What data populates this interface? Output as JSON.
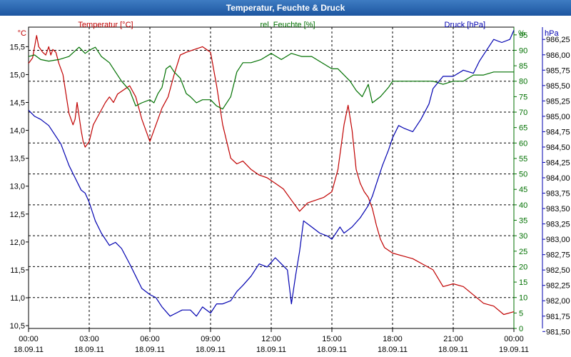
{
  "window": {
    "title": "Temperatur, Feuchte & Druck"
  },
  "colors": {
    "temperature": "#c00000",
    "humidity": "#007000",
    "pressure": "#0000b0",
    "title_bar": "#2a65b0"
  },
  "chart_data": {
    "type": "line",
    "title": "Temperatur, Feuchte & Druck",
    "grid": true,
    "x_ticks": [
      {
        "time": "00:00",
        "date": "18.09.11"
      },
      {
        "time": "03:00",
        "date": "18.09.11"
      },
      {
        "time": "06:00",
        "date": "18.09.11"
      },
      {
        "time": "09:00",
        "date": "18.09.11"
      },
      {
        "time": "12:00",
        "date": "18.09.11"
      },
      {
        "time": "15:00",
        "date": "18.09.11"
      },
      {
        "time": "18:00",
        "date": "18.09.11"
      },
      {
        "time": "21:00",
        "date": "18.09.11"
      },
      {
        "time": "00:00",
        "date": "19.09.11"
      }
    ],
    "x_range_hours": [
      0,
      24
    ],
    "axes": {
      "temperature": {
        "unit": "°C",
        "side": "left",
        "ylim": [
          10.45,
          15.85
        ],
        "ticks": [
          "10,5",
          "11,0",
          "11,5",
          "12,0",
          "12,5",
          "13,0",
          "13,5",
          "14,0",
          "14,5",
          "15,0",
          "15,5"
        ],
        "tick_values": [
          10.5,
          11.0,
          11.5,
          12.0,
          12.5,
          13.0,
          13.5,
          14.0,
          14.5,
          15.0,
          15.5
        ]
      },
      "humidity": {
        "unit": "%",
        "side": "right",
        "ylim": [
          0,
          97.5
        ],
        "ticks": [
          "0",
          "5",
          "10",
          "15",
          "20",
          "25",
          "30",
          "35",
          "40",
          "45",
          "50",
          "55",
          "60",
          "65",
          "70",
          "75",
          "80",
          "85",
          "90",
          "95"
        ],
        "tick_values": [
          0,
          5,
          10,
          15,
          20,
          25,
          30,
          35,
          40,
          45,
          50,
          55,
          60,
          65,
          70,
          75,
          80,
          85,
          90,
          95
        ]
      },
      "pressure": {
        "unit": "hPa",
        "side": "right",
        "ylim": [
          981.55,
          986.45
        ],
        "ticks": [
          "981,50",
          "981,75",
          "982,00",
          "982,25",
          "982,50",
          "982,75",
          "983,00",
          "983,25",
          "983,50",
          "983,75",
          "984,00",
          "984,25",
          "984,50",
          "984,75",
          "985,00",
          "985,25",
          "985,50",
          "985,75",
          "986,00",
          "986,25"
        ],
        "tick_values": [
          981.5,
          981.75,
          982.0,
          982.25,
          982.5,
          982.75,
          983.0,
          983.25,
          983.5,
          983.75,
          984.0,
          984.25,
          984.5,
          984.75,
          985.0,
          985.25,
          985.5,
          985.75,
          986.0,
          986.25
        ]
      }
    },
    "series": [
      {
        "name": "Temperatur [°C]",
        "axis": "temperature",
        "color": "#c00000",
        "x": [
          0,
          0.2,
          0.4,
          0.5,
          0.7,
          0.85,
          1.0,
          1.1,
          1.2,
          1.35,
          1.5,
          1.7,
          2.0,
          2.2,
          2.3,
          2.4,
          2.6,
          2.7,
          2.8,
          3.0,
          3.2,
          3.5,
          3.8,
          4.0,
          4.2,
          4.4,
          4.6,
          5.0,
          5.3,
          5.6,
          6.0,
          6.3,
          6.6,
          6.9,
          7.2,
          7.5,
          7.8,
          8.2,
          8.6,
          9.0,
          9.3,
          9.6,
          10.0,
          10.3,
          10.6,
          11.0,
          11.4,
          11.8,
          12.2,
          12.6,
          13.0,
          13.4,
          13.8,
          14.2,
          14.6,
          15.0,
          15.3,
          15.6,
          15.8,
          16.0,
          16.2,
          16.4,
          16.6,
          16.8,
          17.0,
          17.2,
          17.4,
          17.6,
          18.0,
          18.5,
          19.0,
          19.5,
          20.0,
          20.5,
          21.0,
          21.5,
          22.0,
          22.5,
          23.0,
          23.5,
          24.0
        ],
        "values": [
          15.2,
          15.3,
          15.7,
          15.5,
          15.4,
          15.35,
          15.5,
          15.35,
          15.45,
          15.4,
          15.2,
          15.0,
          14.3,
          14.1,
          14.2,
          14.5,
          14.0,
          13.8,
          13.7,
          13.8,
          14.1,
          14.3,
          14.5,
          14.6,
          14.5,
          14.65,
          14.7,
          14.8,
          14.6,
          14.2,
          13.8,
          14.1,
          14.4,
          14.6,
          15.0,
          15.35,
          15.4,
          15.45,
          15.5,
          15.4,
          14.8,
          14.1,
          13.5,
          13.4,
          13.45,
          13.3,
          13.2,
          13.15,
          13.05,
          12.95,
          12.75,
          12.55,
          12.7,
          12.75,
          12.8,
          12.9,
          13.3,
          14.1,
          14.45,
          14.0,
          13.3,
          13.05,
          12.9,
          12.8,
          12.6,
          12.3,
          12.05,
          11.9,
          11.8,
          11.75,
          11.7,
          11.6,
          11.5,
          11.2,
          11.25,
          11.2,
          11.05,
          10.9,
          10.85,
          10.7,
          10.75
        ]
      },
      {
        "name": "rel. Feuchte [%]",
        "axis": "humidity",
        "color": "#007000",
        "x": [
          0,
          0.3,
          0.6,
          1.0,
          1.5,
          2.0,
          2.5,
          2.8,
          3.0,
          3.3,
          3.6,
          4.0,
          4.3,
          4.6,
          5.0,
          5.3,
          5.6,
          6.0,
          6.2,
          6.4,
          6.6,
          6.8,
          7.0,
          7.2,
          7.5,
          7.8,
          8.0,
          8.3,
          8.6,
          9.0,
          9.3,
          9.6,
          10.0,
          10.3,
          10.6,
          11.0,
          11.5,
          12.0,
          12.5,
          13.0,
          13.5,
          14.0,
          14.5,
          15.0,
          15.3,
          15.6,
          15.9,
          16.2,
          16.5,
          16.8,
          17.0,
          17.4,
          17.8,
          18.0,
          18.5,
          19.0,
          19.5,
          20.0,
          20.5,
          21.0,
          21.5,
          22.0,
          22.5,
          23.0,
          23.5,
          24.0
        ],
        "values": [
          88,
          88.5,
          87,
          86.5,
          87,
          88,
          91,
          89,
          90,
          91,
          88,
          86,
          83,
          80,
          77,
          72,
          73,
          74,
          73,
          76,
          78,
          84,
          85,
          83,
          81,
          76,
          75,
          73,
          74,
          74,
          72,
          71,
          75,
          83,
          86,
          86,
          87,
          89,
          87,
          89,
          88,
          88,
          86,
          84,
          84,
          82,
          80,
          77,
          75,
          79,
          73,
          75,
          78,
          80,
          80,
          80,
          80,
          80,
          79,
          80,
          80,
          82,
          82,
          83,
          83,
          83
        ]
      },
      {
        "name": "Druck [hPa]",
        "axis": "pressure",
        "color": "#0000b0",
        "x": [
          0,
          0.3,
          0.6,
          1.0,
          1.3,
          1.6,
          2.0,
          2.3,
          2.6,
          2.8,
          3.0,
          3.3,
          3.6,
          4.0,
          4.3,
          4.6,
          5.0,
          5.3,
          5.6,
          6.0,
          6.3,
          6.6,
          7.0,
          7.3,
          7.6,
          8.0,
          8.3,
          8.6,
          9.0,
          9.3,
          9.6,
          10.0,
          10.3,
          10.6,
          11.0,
          11.4,
          11.8,
          12.2,
          12.5,
          12.8,
          13.0,
          13.2,
          13.4,
          13.6,
          14.0,
          14.4,
          14.8,
          15.0,
          15.2,
          15.4,
          15.6,
          15.8,
          16.0,
          16.4,
          16.8,
          17.0,
          17.2,
          17.5,
          17.8,
          18.0,
          18.3,
          18.6,
          19.0,
          19.4,
          19.8,
          20.0,
          20.5,
          21.0,
          21.5,
          22.0,
          22.3,
          22.6,
          23.0,
          23.4,
          23.8,
          24.0
        ],
        "values": [
          985.1,
          985.0,
          984.95,
          984.85,
          984.7,
          984.55,
          984.2,
          984.0,
          983.8,
          983.75,
          983.6,
          983.3,
          983.1,
          982.9,
          982.95,
          982.85,
          982.6,
          982.4,
          982.2,
          982.1,
          982.05,
          981.9,
          981.75,
          981.8,
          981.85,
          981.85,
          981.75,
          981.9,
          981.8,
          981.95,
          981.95,
          982.0,
          982.15,
          982.25,
          982.4,
          982.6,
          982.55,
          982.7,
          982.6,
          982.5,
          981.95,
          982.4,
          982.8,
          983.3,
          983.2,
          983.1,
          983.05,
          983.0,
          983.1,
          983.2,
          983.1,
          983.15,
          983.2,
          983.35,
          983.55,
          983.7,
          983.9,
          984.2,
          984.45,
          984.65,
          984.85,
          984.8,
          984.75,
          984.95,
          985.2,
          985.45,
          985.65,
          985.65,
          985.75,
          985.7,
          985.9,
          986.05,
          986.25,
          986.2,
          986.25,
          986.4
        ]
      }
    ]
  }
}
